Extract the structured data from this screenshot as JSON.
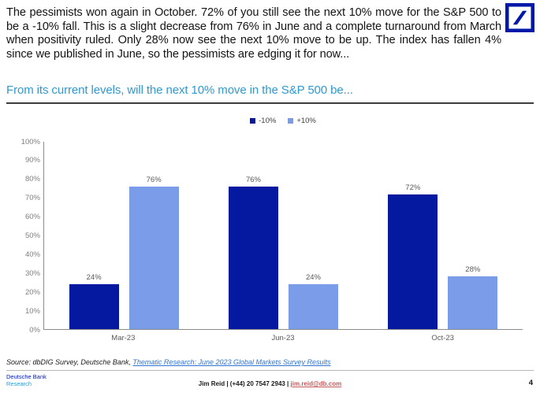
{
  "header": {
    "paragraph": "The pessimists won again in October. 72% of you still see the next 10% move for the S&P 500 to be a -10% fall. This is a slight decrease from 76% in June and a complete turnaround from March when positivity ruled. Only 28% now see the next 10% move to be up. The index has fallen 4% since we published in June, so the pessimists are edging it for now...",
    "subtitle": "From its current levels, will the next 10% move in the S&P 500 be...",
    "logo_color": "#0018A8"
  },
  "chart_data": {
    "type": "bar",
    "title": "From its current levels, will the next 10% move in the S&P 500 be...",
    "categories": [
      "Mar-23",
      "Jun-23",
      "Oct-23"
    ],
    "series": [
      {
        "name": "-10%",
        "color": "#0418A0",
        "values": [
          24,
          76,
          72
        ]
      },
      {
        "name": "+10%",
        "color": "#7B9DE9",
        "values": [
          76,
          24,
          28
        ]
      }
    ],
    "value_suffix": "%",
    "yticks": [
      "100%",
      "90%",
      "80%",
      "70%",
      "60%",
      "50%",
      "40%",
      "30%",
      "20%",
      "10%",
      "0%"
    ],
    "ylim": [
      0,
      100
    ],
    "grid": false,
    "data_labels": true,
    "legend_position": "top-center"
  },
  "source": {
    "prefix": "Source: dbDIG Survey, Deutsche Bank, ",
    "link": "Thematic Research: June 2023 Global Markets Survey Results"
  },
  "footer": {
    "brand_line1": "Deutsche Bank",
    "brand_line2": "Research",
    "contact_name": "Jim Reid | (+44) 20 7547 2943 | ",
    "contact_email": "jim.reid@db.com",
    "page_number": "4"
  }
}
